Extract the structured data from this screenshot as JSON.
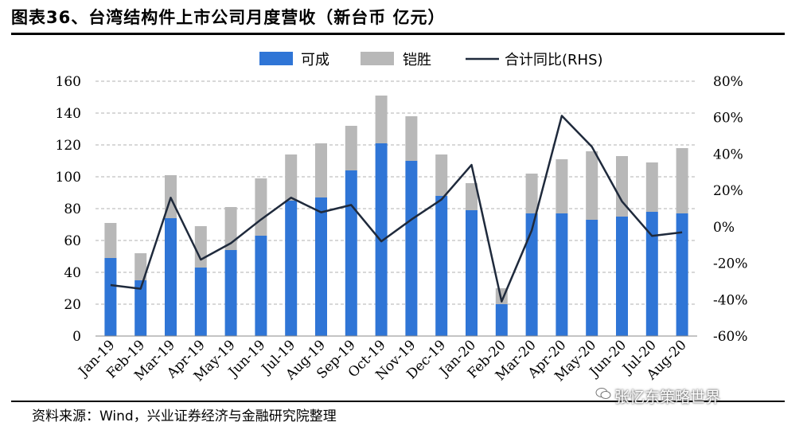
{
  "header": {
    "title": "图表36、台湾结构件上市公司月度营收（新台币 亿元）"
  },
  "footer": {
    "source": "资料来源：Wind，兴业证券经济与金融研究院整理",
    "watermark": "张忆东策略世界"
  },
  "colors": {
    "keyon": "#2f75d6",
    "catcher": "#b8b8b8",
    "line": "#1f2a3c",
    "grid": "#b0b0b0"
  },
  "chart_data": {
    "type": "bar",
    "stacked": true,
    "title": "",
    "categories": [
      "Jan-19",
      "Feb-19",
      "Mar-19",
      "Apr-19",
      "May-19",
      "Jun-19",
      "Jul-19",
      "Aug-19",
      "Sep-19",
      "Oct-19",
      "Nov-19",
      "Dec-19",
      "Jan-20",
      "Feb-20",
      "Mar-20",
      "Apr-20",
      "May-20",
      "Jun-20",
      "Jul-20",
      "Aug-20"
    ],
    "series": [
      {
        "name": "可成",
        "type": "bar",
        "axis": "left",
        "values": [
          49,
          35,
          74,
          43,
          54,
          63,
          85,
          87,
          104,
          121,
          110,
          88,
          79,
          20,
          77,
          77,
          73,
          75,
          78,
          77
        ]
      },
      {
        "name": "铠胜",
        "type": "bar",
        "axis": "left",
        "values": [
          22,
          17,
          27,
          26,
          27,
          36,
          29,
          34,
          28,
          30,
          28,
          26,
          17,
          10,
          25,
          34,
          43,
          38,
          31,
          41
        ]
      },
      {
        "name": "合计同比(RHS)",
        "type": "line",
        "axis": "right",
        "unit": "%",
        "values": [
          -32,
          -34,
          16,
          -18,
          -9,
          4,
          16,
          8,
          12,
          -8,
          4,
          15,
          34,
          -41,
          -2,
          61,
          44,
          14,
          -5,
          -3
        ]
      }
    ],
    "y_left": {
      "min": 0,
      "max": 160,
      "step": 20,
      "ticks": [
        "0",
        "20",
        "40",
        "60",
        "80",
        "100",
        "120",
        "140",
        "160"
      ]
    },
    "y_right": {
      "min": -60,
      "max": 80,
      "step": 20,
      "ticks": [
        "-60%",
        "-40%",
        "-20%",
        "0%",
        "20%",
        "40%",
        "60%",
        "80%"
      ]
    },
    "grid": "horizontal dashed",
    "legend_position": "top"
  }
}
